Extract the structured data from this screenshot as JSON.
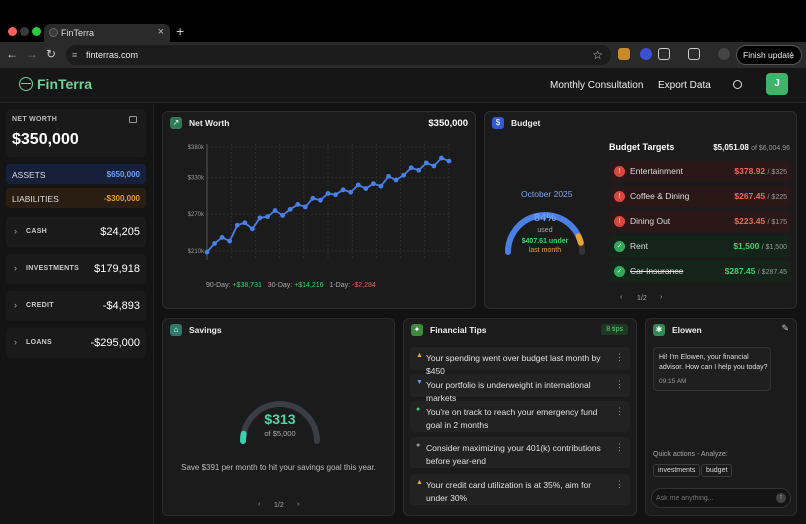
{
  "browser": {
    "tab_title": "FinTerra",
    "tab_close": "×",
    "new_tab": "+",
    "url": "finterras.com",
    "finish_update": "Finish update",
    "menu": "⋮"
  },
  "header": {
    "brand": "FinTerra",
    "links": [
      "Monthly Consultation",
      "Export Data"
    ],
    "avatar": "J"
  },
  "sidebar": {
    "net_worth_label": "NET WORTH",
    "net_worth": "$350,000",
    "assets_label": "ASSETS",
    "assets": "$650,000",
    "liabilities_label": "LIABILITIES",
    "liabilities": "-$300,000",
    "accounts": [
      {
        "label": "CASH",
        "value": "$24,205"
      },
      {
        "label": "INVESTMENTS",
        "value": "$179,918"
      },
      {
        "label": "CREDIT",
        "value": "-$4,893"
      },
      {
        "label": "LOANS",
        "value": "-$295,000"
      }
    ]
  },
  "networth_card": {
    "title": "Net Worth",
    "value": "$350,000",
    "changes": [
      {
        "label": "90-Day:",
        "value": "+$38,731",
        "color": "#3ecf6e"
      },
      {
        "label": "30-Day:",
        "value": "+$14,216",
        "color": "#3ecf6e"
      },
      {
        "label": "1-Day:",
        "value": "-$2,284",
        "color": "#e0605a"
      }
    ]
  },
  "chart_data": {
    "type": "line",
    "y_ticks": [
      "$210k",
      "$270k",
      "$330k",
      "$380k"
    ],
    "y_tick_values": [
      210,
      270,
      330,
      380
    ],
    "ylim": [
      195,
      385
    ],
    "grid": true,
    "color": "#4a7fe6",
    "values": [
      208,
      222,
      232,
      226,
      252,
      256,
      246,
      264,
      266,
      276,
      268,
      278,
      286,
      282,
      296,
      293,
      304,
      302,
      310,
      306,
      318,
      312,
      320,
      316,
      332,
      326,
      334,
      346,
      342,
      354,
      349,
      362,
      357
    ]
  },
  "budget_card": {
    "title": "Budget",
    "month": "October 2025",
    "percent": "84%",
    "percent_value": 84,
    "used_label": "used",
    "under_value": "$407.61 under",
    "under_label": "last month",
    "targets_title": "Budget Targets",
    "total": "$5,051.08",
    "total_of": "of $6,004.96",
    "targets": [
      {
        "name": "Entertainment",
        "spent": "$378.92",
        "limit": "/ $325",
        "status": "over"
      },
      {
        "name": "Coffee & Dining",
        "spent": "$267.45",
        "limit": "/ $225",
        "status": "over"
      },
      {
        "name": "Dining Out",
        "spent": "$223.45",
        "limit": "/ $175",
        "status": "over"
      },
      {
        "name": "Rent",
        "spent": "$1,500",
        "limit": "/ $1,500",
        "status": "ok"
      },
      {
        "name": "Car Insurance",
        "spent": "$287.45",
        "limit": "/ $287.45",
        "status": "done"
      }
    ],
    "page": "1/2"
  },
  "savings_card": {
    "title": "Savings",
    "saved": "$313",
    "goal": "of $5,000",
    "progress": 0.0626,
    "message": "Save $391 per month to hit your savings goal this year.",
    "page": "1/2"
  },
  "tips_card": {
    "title": "Financial Tips",
    "badge": "8 tips",
    "tips": [
      {
        "text": "Your spending went over budget last month by $450",
        "icon": "warning-icon",
        "color": "#e8a33a",
        "glyph": "▲"
      },
      {
        "text": "Your portfolio is underweight in international markets",
        "icon": "pin-icon",
        "color": "#6f8fe8",
        "glyph": "▼"
      },
      {
        "text": "You're on track to reach your emergency fund goal in 2 months",
        "icon": "check-icon",
        "color": "#3ecf6e",
        "glyph": "●"
      },
      {
        "text": "Consider maximizing your 401(k) contributions before year-end",
        "icon": "info-icon",
        "color": "#999999",
        "glyph": "●"
      },
      {
        "text": "Your credit card utilization is at 35%, aim for under 30%",
        "icon": "warning-icon",
        "color": "#e8a33a",
        "glyph": "▲"
      }
    ]
  },
  "chat_card": {
    "title": "Elowen",
    "message": "Hi! I'm Elowen, your financial advisor. How can I help you today?",
    "time": "09:15 AM",
    "quick_label": "Quick actions - Analyze:",
    "quick_actions": [
      "investments",
      "budget"
    ],
    "placeholder": "Ask me anything..."
  }
}
